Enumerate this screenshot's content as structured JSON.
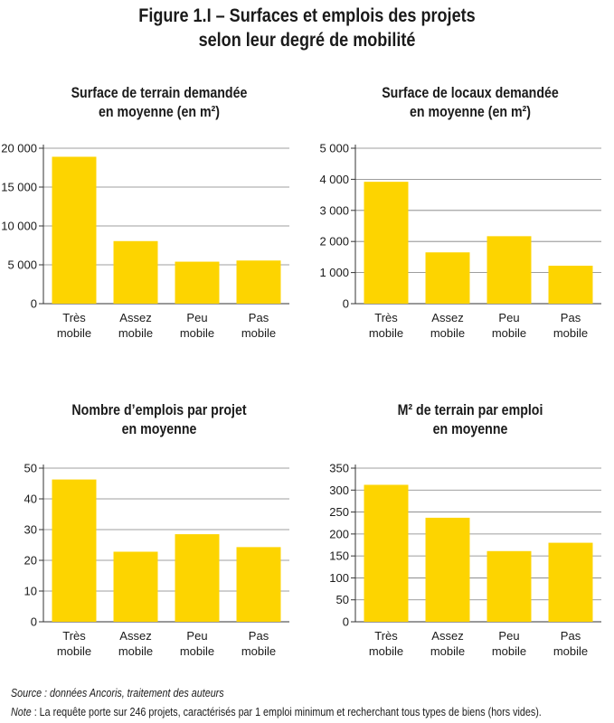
{
  "figure_title": {
    "line1": "Figure 1.I  – Surfaces et emplois des projets",
    "line2": "selon leur degré de mobilité"
  },
  "colors": {
    "bar": "#FDD400",
    "grid": "#7f7f7f",
    "axis": "#333333",
    "text": "#1a1a1a"
  },
  "chart_data": [
    {
      "type": "bar",
      "title_lines": [
        "Surface de terrain demandée",
        "en moyenne (en m²)"
      ],
      "categories": [
        [
          "Très",
          "mobile"
        ],
        [
          "Assez",
          "mobile"
        ],
        [
          "Peu",
          "mobile"
        ],
        [
          "Pas",
          "mobile"
        ]
      ],
      "values": [
        18900,
        8050,
        5400,
        5550
      ],
      "ylim": [
        0,
        20000
      ],
      "yticks": [
        0,
        5000,
        10000,
        15000,
        20000
      ],
      "ytick_labels": [
        "0",
        "5 000",
        "10 000",
        "15 000",
        "20 000"
      ],
      "grid": true
    },
    {
      "type": "bar",
      "title_lines": [
        "Surface de locaux demandée",
        "en moyenne (en m²)"
      ],
      "categories": [
        [
          "Très",
          "mobile"
        ],
        [
          "Assez",
          "mobile"
        ],
        [
          "Peu",
          "mobile"
        ],
        [
          "Pas",
          "mobile"
        ]
      ],
      "values": [
        3920,
        1650,
        2170,
        1220
      ],
      "ylim": [
        0,
        5000
      ],
      "yticks": [
        0,
        1000,
        2000,
        3000,
        4000,
        5000
      ],
      "ytick_labels": [
        "0",
        "1 000",
        "2 000",
        "3 000",
        "4 000",
        "5 000"
      ],
      "grid": true
    },
    {
      "type": "bar",
      "title_lines": [
        "Nombre d’emplois par projet",
        "en moyenne"
      ],
      "categories": [
        [
          "Très",
          "mobile"
        ],
        [
          "Assez",
          "mobile"
        ],
        [
          "Peu",
          "mobile"
        ],
        [
          "Pas",
          "mobile"
        ]
      ],
      "values": [
        46.3,
        22.8,
        28.5,
        24.3
      ],
      "ylim": [
        0,
        50
      ],
      "yticks": [
        0,
        10,
        20,
        30,
        40,
        50
      ],
      "ytick_labels": [
        "0",
        "10",
        "20",
        "30",
        "40",
        "50"
      ],
      "grid": true
    },
    {
      "type": "bar",
      "title_lines": [
        "M² de terrain par emploi",
        "en moyenne"
      ],
      "categories": [
        [
          "Très",
          "mobile"
        ],
        [
          "Assez",
          "mobile"
        ],
        [
          "Peu",
          "mobile"
        ],
        [
          "Pas",
          "mobile"
        ]
      ],
      "values": [
        312,
        237,
        161,
        180
      ],
      "ylim": [
        0,
        350
      ],
      "yticks": [
        0,
        50,
        100,
        150,
        200,
        250,
        300,
        350
      ],
      "ytick_labels": [
        "0",
        "50",
        "100",
        "150",
        "200",
        "250",
        "300",
        "350"
      ],
      "grid": true
    }
  ],
  "source_text": "Source : données Ancoris, traitement des auteurs",
  "note": {
    "label": "Note",
    "text": " : La requête porte sur 246 projets, caractérisés par 1 emploi minimum et recherchant tous types de biens (hors vides)."
  }
}
